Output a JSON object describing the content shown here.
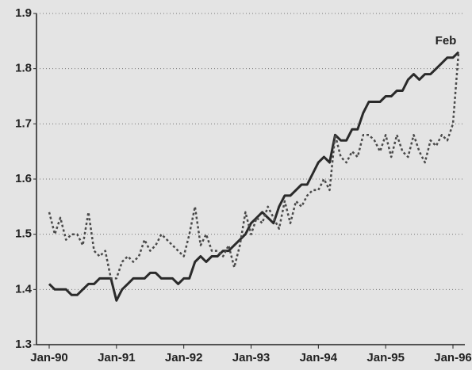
{
  "chart_data": {
    "type": "line",
    "annotation": "Feb",
    "categories": [
      "Jan-90",
      null,
      null,
      null,
      null,
      null,
      null,
      null,
      null,
      null,
      null,
      null,
      "Jan-91",
      null,
      null,
      null,
      null,
      null,
      null,
      null,
      null,
      null,
      null,
      null,
      "Jan-92",
      null,
      null,
      null,
      null,
      null,
      null,
      null,
      null,
      null,
      null,
      null,
      "Jan-93",
      null,
      null,
      null,
      null,
      null,
      null,
      null,
      null,
      null,
      null,
      null,
      "Jan-94",
      null,
      null,
      null,
      null,
      null,
      null,
      null,
      null,
      null,
      null,
      null,
      "Jan-95",
      null,
      null,
      null,
      null,
      null,
      null,
      null,
      null,
      null,
      null,
      null,
      "Jan-96",
      null
    ],
    "series": [
      {
        "color": "#2a2a2a",
        "style": "solid",
        "values": [
          1.41,
          1.4,
          1.4,
          1.4,
          1.39,
          1.39,
          1.4,
          1.41,
          1.41,
          1.42,
          1.42,
          1.42,
          1.38,
          1.4,
          1.41,
          1.42,
          1.42,
          1.42,
          1.43,
          1.43,
          1.42,
          1.42,
          1.42,
          1.41,
          1.42,
          1.42,
          1.45,
          1.46,
          1.45,
          1.46,
          1.46,
          1.47,
          1.47,
          1.48,
          1.49,
          1.5,
          1.52,
          1.53,
          1.54,
          1.53,
          1.52,
          1.55,
          1.57,
          1.57,
          1.58,
          1.59,
          1.59,
          1.61,
          1.63,
          1.64,
          1.63,
          1.68,
          1.67,
          1.67,
          1.69,
          1.69,
          1.72,
          1.74,
          1.74,
          1.74,
          1.75,
          1.75,
          1.76,
          1.76,
          1.78,
          1.79,
          1.78,
          1.79,
          1.79,
          1.8,
          1.81,
          1.82,
          1.82,
          1.83
        ]
      },
      {
        "color": "#4a4a4a",
        "style": "dotted",
        "values": [
          1.54,
          1.5,
          1.53,
          1.49,
          1.5,
          1.5,
          1.48,
          1.54,
          1.47,
          1.46,
          1.47,
          1.42,
          1.42,
          1.45,
          1.46,
          1.45,
          1.46,
          1.49,
          1.47,
          1.48,
          1.5,
          1.49,
          1.48,
          1.47,
          1.46,
          1.5,
          1.55,
          1.48,
          1.5,
          1.47,
          1.47,
          1.46,
          1.48,
          1.44,
          1.48,
          1.54,
          1.5,
          1.53,
          1.52,
          1.55,
          1.53,
          1.51,
          1.56,
          1.52,
          1.56,
          1.55,
          1.57,
          1.58,
          1.58,
          1.6,
          1.58,
          1.68,
          1.64,
          1.63,
          1.65,
          1.64,
          1.68,
          1.68,
          1.67,
          1.65,
          1.68,
          1.64,
          1.68,
          1.65,
          1.64,
          1.68,
          1.65,
          1.63,
          1.67,
          1.66,
          1.68,
          1.67,
          1.7,
          1.83
        ]
      }
    ],
    "ylim": [
      1.3,
      1.9
    ],
    "yticks": [
      1.3,
      1.4,
      1.5,
      1.6,
      1.7,
      1.8,
      1.9
    ],
    "grid": true
  }
}
